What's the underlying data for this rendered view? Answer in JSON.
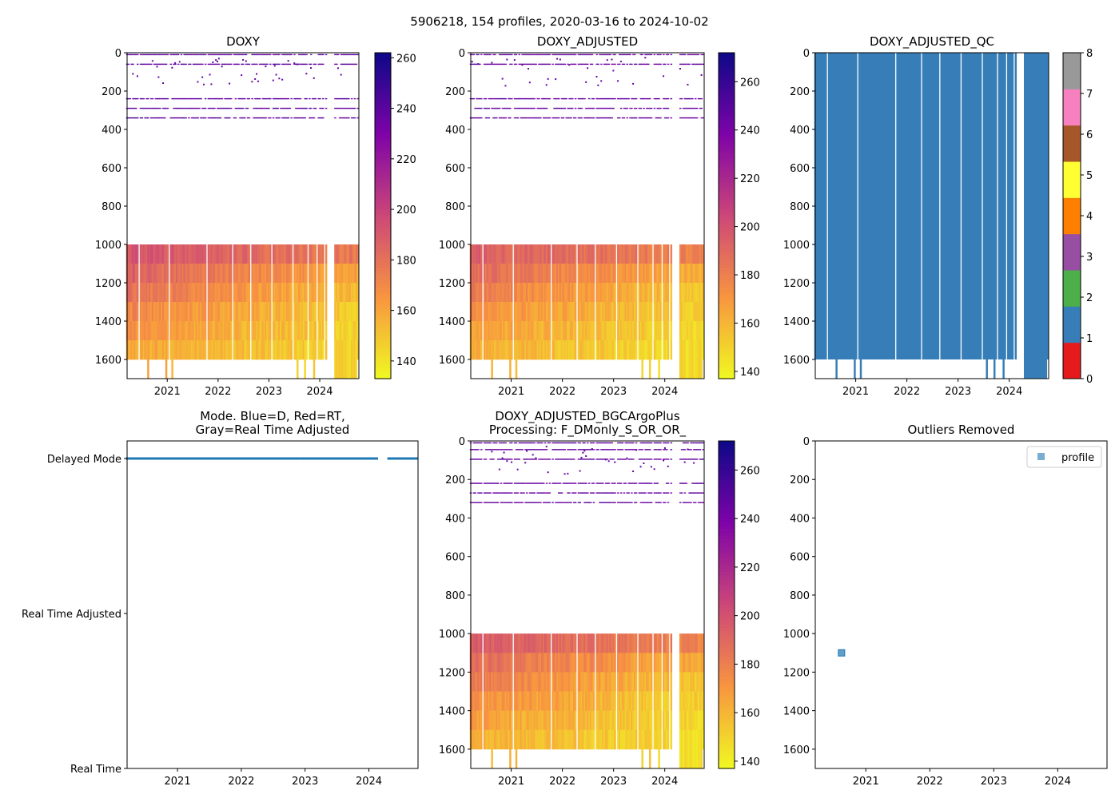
{
  "chart_data": {
    "suptitle": "5906218, 154 profiles, 2020-03-16 to 2024-10-02",
    "profiles": 154,
    "date_range": [
      2020.21,
      2024.75
    ],
    "missing_intervals": [
      [
        2024.13,
        2024.28
      ]
    ],
    "xticks": [
      "2021",
      "2022",
      "2023",
      "2024"
    ],
    "depth_ticks": [
      "0",
      "200",
      "400",
      "600",
      "800",
      "1000",
      "1200",
      "1400",
      "1600"
    ],
    "ylim": [
      1700,
      0
    ],
    "panels": [
      {
        "id": "doxy",
        "type": "heatmap",
        "title": "DOXY",
        "colormap": "plasma_r",
        "clim": [
          133,
          262
        ],
        "cbar_ticks": [
          "140",
          "160",
          "180",
          "200",
          "220",
          "240",
          "260"
        ],
        "sparse_line_depths": [
          10,
          60,
          240,
          290,
          340
        ],
        "sparse_value": 238,
        "deep_layers": [
          {
            "depth": [
              1000,
              1100
            ],
            "value_start": 192,
            "value_end": 176
          },
          {
            "depth": [
              1100,
              1200
            ],
            "value_start": 186,
            "value_end": 160
          },
          {
            "depth": [
              1200,
              1300
            ],
            "value_start": 180,
            "value_end": 152
          },
          {
            "depth": [
              1300,
              1400
            ],
            "value_start": 172,
            "value_end": 148
          },
          {
            "depth": [
              1400,
              1500
            ],
            "value_start": 166,
            "value_end": 146
          },
          {
            "depth": [
              1500,
              1600
            ],
            "value_start": 160,
            "value_end": 145
          }
        ]
      },
      {
        "id": "doxy-adjusted",
        "type": "heatmap",
        "title": "DOXY_ADJUSTED",
        "colormap": "plasma_r",
        "clim": [
          137,
          272
        ],
        "cbar_ticks": [
          "140",
          "160",
          "180",
          "200",
          "220",
          "240",
          "260"
        ],
        "sparse_line_depths": [
          10,
          60,
          240,
          290,
          340
        ],
        "sparse_value": 245,
        "deep_layers": [
          {
            "depth": [
              1000,
              1100
            ],
            "value_start": 195,
            "value_end": 178
          },
          {
            "depth": [
              1100,
              1200
            ],
            "value_start": 188,
            "value_end": 162
          },
          {
            "depth": [
              1200,
              1300
            ],
            "value_start": 182,
            "value_end": 154
          },
          {
            "depth": [
              1300,
              1400
            ],
            "value_start": 174,
            "value_end": 150
          },
          {
            "depth": [
              1400,
              1500
            ],
            "value_start": 168,
            "value_end": 148
          },
          {
            "depth": [
              1500,
              1600
            ],
            "value_start": 162,
            "value_end": 146
          }
        ]
      },
      {
        "id": "doxy-adjusted-qc",
        "type": "heatmap",
        "title": "DOXY_ADJUSTED_QC",
        "colormap": "Set1",
        "clim": [
          0,
          8
        ],
        "cbar_ticks": [
          "0",
          "1",
          "2",
          "3",
          "4",
          "5",
          "6",
          "7",
          "8"
        ],
        "qc_colors": [
          "#e41a1c",
          "#377eb8",
          "#4daf4a",
          "#984ea3",
          "#ff7f00",
          "#ffff33",
          "#a65628",
          "#f781bf",
          "#999999"
        ],
        "value": 1
      },
      {
        "id": "mode",
        "type": "scatter",
        "title": "Mode. Blue=D, Red=RT,",
        "title2": "Gray=Real Time Adjusted",
        "yticks": [
          "Delayed Mode",
          "Real Time Adjusted",
          "Real Time"
        ],
        "mode_value": "Delayed Mode",
        "color": "#1f77b4"
      },
      {
        "id": "bgc",
        "type": "heatmap",
        "title": "DOXY_ADJUSTED_BGCArgoPlus",
        "title2": "Processing: F_DMonly_S_OR_OR_",
        "colormap": "plasma_r",
        "clim": [
          137,
          272
        ],
        "cbar_ticks": [
          "140",
          "160",
          "180",
          "200",
          "220",
          "240",
          "260"
        ],
        "sparse_line_depths": [
          10,
          45,
          95,
          220,
          270,
          320
        ],
        "sparse_value": 245,
        "deep_layers": [
          {
            "depth": [
              1000,
              1100
            ],
            "value_start": 196,
            "value_end": 178
          },
          {
            "depth": [
              1100,
              1200
            ],
            "value_start": 188,
            "value_end": 162
          },
          {
            "depth": [
              1200,
              1300
            ],
            "value_start": 182,
            "value_end": 154
          },
          {
            "depth": [
              1300,
              1400
            ],
            "value_start": 174,
            "value_end": 150
          },
          {
            "depth": [
              1400,
              1500
            ],
            "value_start": 168,
            "value_end": 148
          },
          {
            "depth": [
              1500,
              1600
            ],
            "value_start": 162,
            "value_end": 146
          }
        ]
      },
      {
        "id": "outliers",
        "type": "scatter",
        "title": "Outliers Removed",
        "legend": "profile",
        "legend_position": "top-right",
        "color": "#1f77b4",
        "points": [
          {
            "x": 2020.62,
            "y": 1100
          }
        ]
      }
    ]
  }
}
